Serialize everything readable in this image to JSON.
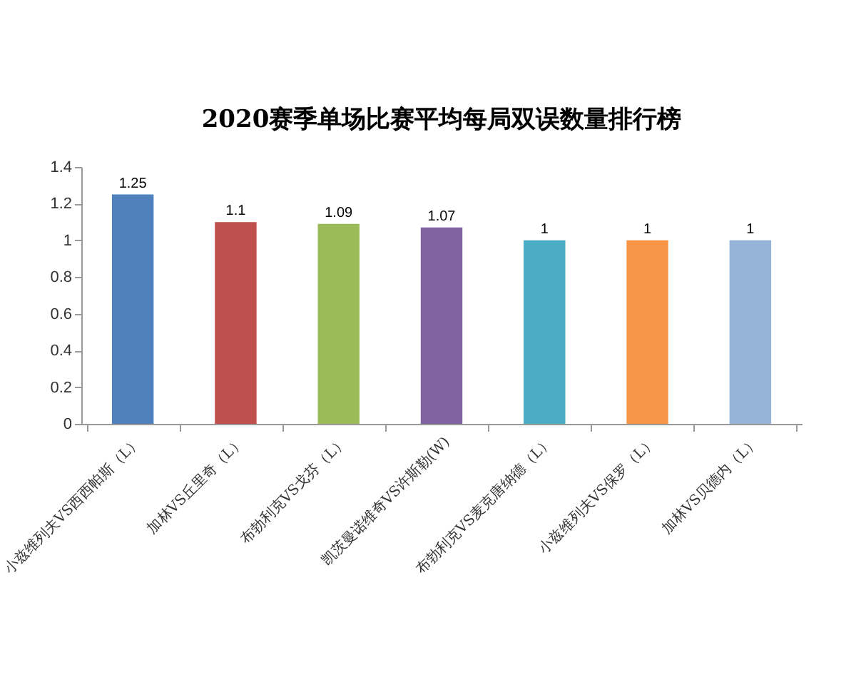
{
  "chart_data": {
    "type": "bar",
    "title": "2020赛季单场比赛平均每局双误数量排行榜",
    "categories": [
      "小兹维列夫VS西西帕斯（L）",
      "加林VS丘里奇（L）",
      "布勃利克VS戈芬（L）",
      "凯茨曼诺维奇VS许斯勒(W)",
      "布勃利克VS麦克唐纳德（L）",
      "小兹维列夫VS保罗（L）",
      "加林VS贝德内（L）"
    ],
    "values": [
      1.25,
      1.1,
      1.09,
      1.07,
      1,
      1,
      1
    ],
    "colors": [
      "#4f81bd",
      "#c0504d",
      "#9bbb59",
      "#8064a2",
      "#4bacc6",
      "#f79646",
      "#95b3d7"
    ],
    "ylim": [
      0,
      1.4
    ],
    "yticks": [
      0,
      0.2,
      0.4,
      0.6,
      0.8,
      1,
      1.2,
      1.4
    ],
    "data_labels": true,
    "grid": false
  }
}
